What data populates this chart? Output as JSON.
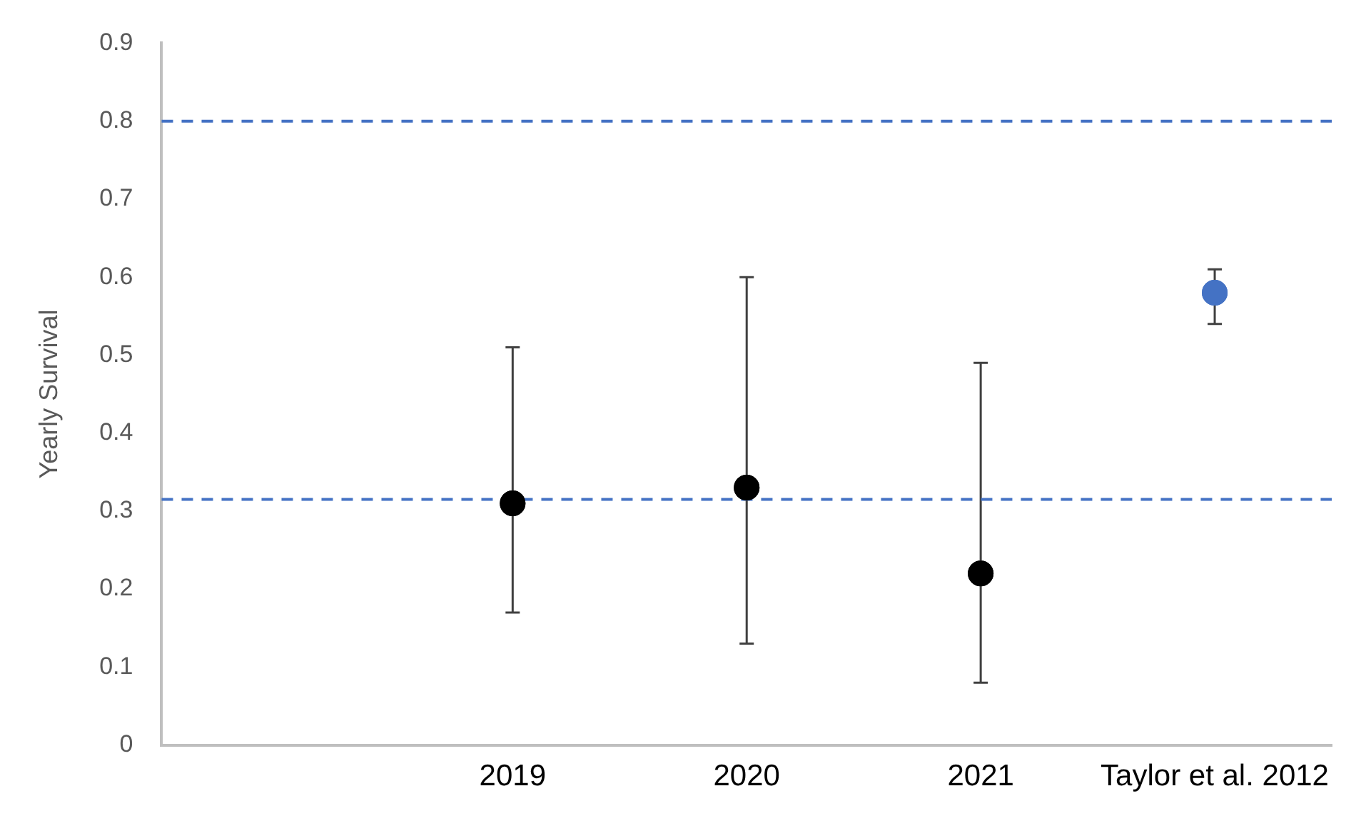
{
  "chart_data": {
    "type": "scatter",
    "ylabel": "Yearly Survival",
    "categories": [
      null,
      "2019",
      "2020",
      "2021",
      "Taylor et al. 2012"
    ],
    "values": [
      null,
      0.31,
      0.33,
      0.22,
      0.58
    ],
    "colors": [
      "#000000",
      "#000000",
      "#000000",
      "#000000",
      "#4472c4"
    ],
    "errors": [
      null,
      [
        0.17,
        0.51
      ],
      [
        0.13,
        0.6
      ],
      [
        0.08,
        0.49
      ],
      [
        0.54,
        0.61
      ]
    ],
    "ylim": [
      0,
      0.9
    ],
    "yticks": [
      0,
      0.1,
      0.2,
      0.3,
      0.4,
      0.5,
      0.6,
      0.7,
      0.8,
      0.9
    ],
    "ref_lines": [
      {
        "axis": "y",
        "value": 0.8,
        "color": "#4472c4",
        "line_style": "dashed"
      },
      {
        "axis": "y",
        "value": 0.315,
        "color": "#4472c4",
        "line_style": "dashed"
      }
    ],
    "grid": false,
    "legend": false,
    "marker": "circle"
  }
}
